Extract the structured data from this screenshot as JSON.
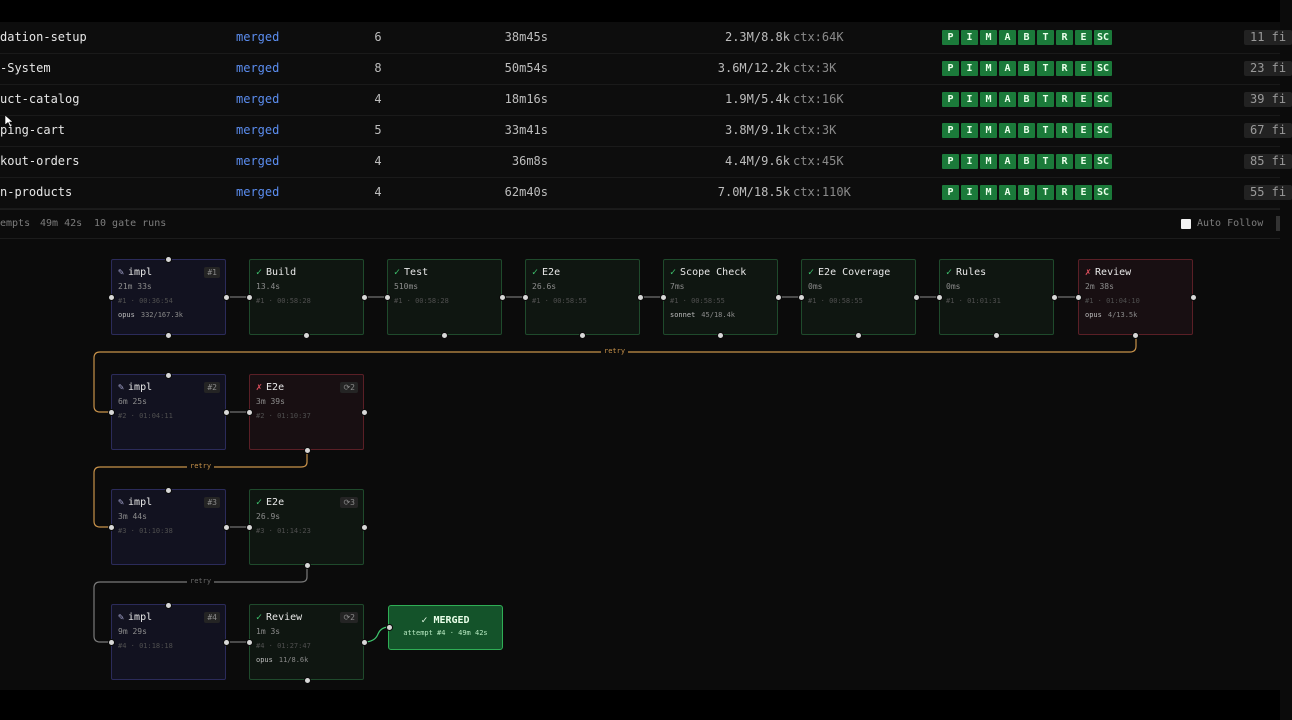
{
  "rows": [
    {
      "name": "dation-setup",
      "status": "merged",
      "attempts": "6",
      "duration": "38m45s",
      "tokens": "2.3M/8.8k",
      "ctx": "ctx:64K",
      "files": "11 fi"
    },
    {
      "name": "-System",
      "status": "merged",
      "attempts": "8",
      "duration": "50m54s",
      "tokens": "3.6M/12.2k",
      "ctx": "ctx:3K",
      "files": "23 fi"
    },
    {
      "name": "uct-catalog",
      "status": "merged",
      "attempts": "4",
      "duration": "18m16s",
      "tokens": "1.9M/5.4k",
      "ctx": "ctx:16K",
      "files": "39 fi"
    },
    {
      "name": "ping-cart",
      "status": "merged",
      "attempts": "5",
      "duration": "33m41s",
      "tokens": "3.8M/9.1k",
      "ctx": "ctx:3K",
      "files": "67 fi"
    },
    {
      "name": "kout-orders",
      "status": "merged",
      "attempts": "4",
      "duration": "36m8s",
      "tokens": "4.4M/9.6k",
      "ctx": "ctx:45K",
      "files": "85 fi"
    },
    {
      "name": "n-products",
      "status": "merged",
      "attempts": "4",
      "duration": "62m40s",
      "tokens": "7.0M/18.5k",
      "ctx": "ctx:110K",
      "files": "55 fi"
    }
  ],
  "gates": [
    "P",
    "I",
    "M",
    "A",
    "B",
    "T",
    "R",
    "E",
    "SC"
  ],
  "colors": {
    "gate": "#1b7a3a",
    "status": "#5b8def",
    "retry": "#c8924a",
    "ok": "#3ec46d",
    "fail": "#e0505e"
  },
  "summary": {
    "attempts": "empts",
    "time": "49m 42s",
    "gate_runs": "10 gate runs",
    "auto_follow": "Auto Follow"
  },
  "graph": {
    "row1": [
      {
        "name": "impl",
        "icon": "pencil-icon",
        "badge": "#1",
        "dur": "21m 33s",
        "meta": "#1 · 00:36:54",
        "model": "opus",
        "tok": "332/167.3k"
      },
      {
        "name": "Build",
        "icon": "check-icon",
        "dur": "13.4s",
        "meta": "#1 · 00:58:28"
      },
      {
        "name": "Test",
        "icon": "check-icon",
        "dur": "510ms",
        "meta": "#1 · 00:58:28"
      },
      {
        "name": "E2e",
        "icon": "check-icon",
        "dur": "26.6s",
        "meta": "#1 · 00:58:55"
      },
      {
        "name": "Scope Check",
        "icon": "check-icon",
        "dur": "7ms",
        "meta": "#1 · 00:58:55",
        "model": "sonnet",
        "tok": "45/18.4k"
      },
      {
        "name": "E2e Coverage",
        "icon": "check-icon",
        "dur": "0ms",
        "meta": "#1 · 00:58:55"
      },
      {
        "name": "Rules",
        "icon": "check-icon",
        "dur": "0ms",
        "meta": "#1 · 01:01:31"
      },
      {
        "name": "Review",
        "icon": "cross-icon",
        "dur": "2m 38s",
        "meta": "#1 · 01:04:10",
        "model": "opus",
        "tok": "4/13.5k"
      }
    ],
    "row2": [
      {
        "name": "impl",
        "icon": "pencil-icon",
        "badge": "#2",
        "dur": "6m 25s",
        "meta": "#2 · 01:04:11"
      },
      {
        "name": "E2e",
        "icon": "cross-icon",
        "badge": "⟳2",
        "dur": "3m 39s",
        "meta": "#2 · 01:10:37"
      }
    ],
    "row3": [
      {
        "name": "impl",
        "icon": "pencil-icon",
        "badge": "#3",
        "dur": "3m 44s",
        "meta": "#3 · 01:10:38"
      },
      {
        "name": "E2e",
        "icon": "check-icon",
        "badge": "⟳3",
        "dur": "26.9s",
        "meta": "#3 · 01:14:23"
      }
    ],
    "row4": [
      {
        "name": "impl",
        "icon": "pencil-icon",
        "badge": "#4",
        "dur": "9m 29s",
        "meta": "#4 · 01:18:18"
      },
      {
        "name": "Review",
        "icon": "check-icon",
        "badge": "⟳2",
        "dur": "1m 3s",
        "meta": "#4 · 01:27:47",
        "model": "opus",
        "tok": "11/8.6k"
      }
    ],
    "retry_label": "retry",
    "merged": {
      "title": "✓ MERGED",
      "sub": "attempt #4 · 49m 42s"
    }
  }
}
